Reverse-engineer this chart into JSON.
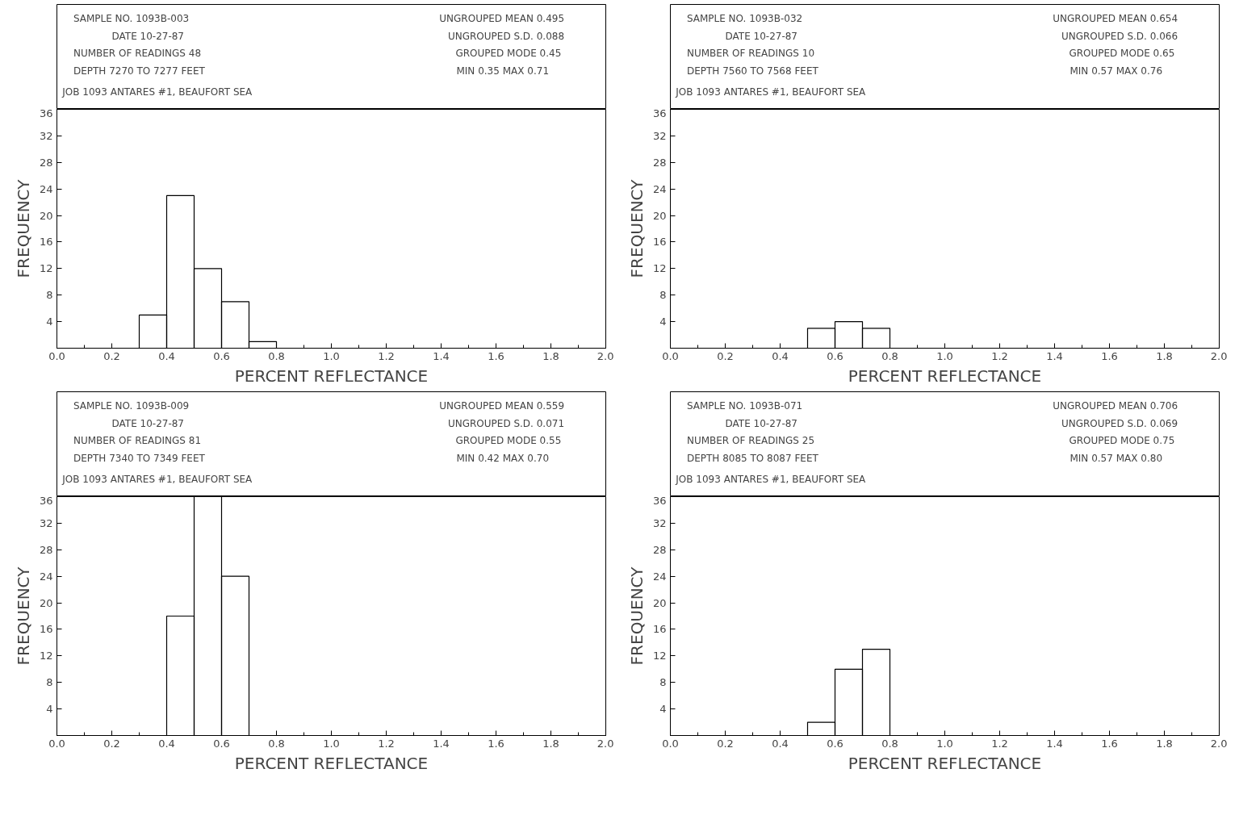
{
  "chart_data": [
    {
      "type": "histogram",
      "title": "SAMPLE NO. 1093B-003",
      "annotations": [
        "DATE 10-27-87",
        "NUMBER OF READINGS 48",
        "DEPTH 7270  TO 7277  FEET",
        "UNGROUPED MEAN  0.495",
        "UNGROUPED S.D.  0.088",
        "GROUPED MODE   0.45",
        "MIN  0.35     MAX  0.71",
        "JOB 1093 ANTARES #1, BEAUFORT SEA"
      ],
      "xlabel": "PERCENT REFLECTANCE",
      "ylabel": "FREQUENCY",
      "bins": [
        0.3,
        0.4,
        0.5,
        0.6,
        0.7,
        0.8
      ],
      "values": [
        5,
        23,
        12,
        7,
        1
      ],
      "color": "#000000",
      "xlim": [
        0,
        2
      ],
      "ylim": [
        0,
        36
      ],
      "xticks": [
        {
          "value": 0,
          "label": "0.0"
        },
        0.2,
        0.4,
        0.6,
        0.8,
        {
          "value": 1,
          "label": "1.0"
        },
        1.2,
        1.4,
        1.6,
        1.8,
        {
          "value": 2,
          "label": "2.0"
        }
      ],
      "yticks": [
        4,
        8,
        12,
        16,
        20,
        24,
        28,
        32,
        36
      ],
      "grid": false
    },
    {
      "type": "histogram",
      "title": "SAMPLE NO. 1093B-032",
      "annotations": [
        "DATE 10-27-87",
        "NUMBER OF READINGS 10",
        "DEPTH 7560  TO 7568  FEET",
        "UNGROUPED MEAN  0.654",
        "UNGROUPED S.D.  0.066",
        "GROUPED MODE   0.65",
        "MIN  0.57     MAX  0.76",
        "JOB 1093 ANTARES #1, BEAUFORT SEA"
      ],
      "xlabel": "PERCENT REFLECTANCE",
      "ylabel": "FREQUENCY",
      "bins": [
        0.5,
        0.6,
        0.7,
        0.8
      ],
      "values": [
        3,
        4,
        3
      ],
      "color": "#000000",
      "xlim": [
        0,
        2
      ],
      "ylim": [
        0,
        36
      ],
      "xticks": [
        {
          "value": 0,
          "label": "0.0"
        },
        0.2,
        0.4,
        0.6,
        0.8,
        {
          "value": 1,
          "label": "1.0"
        },
        1.2,
        1.4,
        1.6,
        1.8,
        {
          "value": 2,
          "label": "2.0"
        }
      ],
      "yticks": [
        4,
        8,
        12,
        16,
        20,
        24,
        28,
        32,
        36
      ],
      "grid": false
    },
    {
      "type": "histogram",
      "title": "SAMPLE NO. 1093B-009",
      "annotations": [
        "DATE 10-27-87",
        "NUMBER OF READINGS 81",
        "DEPTH 7340  TO 7349  FEET",
        "UNGROUPED MEAN  0.559",
        "UNGROUPED S.D.  0.071",
        "GROUPED MODE   0.55",
        "MIN  0.42     MAX  0.70",
        "JOB 1093 ANTARES #1, BEAUFORT SEA"
      ],
      "xlabel": "PERCENT REFLECTANCE",
      "ylabel": "FREQUENCY",
      "bins": [
        0.4,
        0.5,
        0.6,
        0.7
      ],
      "values": [
        18,
        36,
        24
      ],
      "color": "#000000",
      "xlim": [
        0,
        2
      ],
      "ylim": [
        0,
        36
      ],
      "xticks": [
        {
          "value": 0,
          "label": "0.0"
        },
        0.2,
        0.4,
        0.6,
        0.8,
        {
          "value": 1,
          "label": "1.0"
        },
        1.2,
        1.4,
        1.6,
        1.8,
        {
          "value": 2,
          "label": "2.0"
        }
      ],
      "yticks": [
        4,
        8,
        12,
        16,
        20,
        24,
        28,
        32,
        36
      ],
      "grid": false
    },
    {
      "type": "histogram",
      "title": "SAMPLE NO. 1093B-071",
      "annotations": [
        "DATE 10-27-87",
        "NUMBER OF READINGS 25",
        "DEPTH 8085  TO 8087  FEET",
        "UNGROUPED MEAN  0.706",
        "UNGROUPED S.D.  0.069",
        "GROUPED MODE   0.75",
        "MIN  0.57     MAX  0.80",
        "JOB 1093 ANTARES #1, BEAUFORT SEA"
      ],
      "xlabel": "PERCENT REFLECTANCE",
      "ylabel": "FREQUENCY",
      "bins": [
        0.5,
        0.6,
        0.7,
        0.8
      ],
      "values": [
        2,
        10,
        13
      ],
      "color": "#000000",
      "xlim": [
        0,
        2
      ],
      "ylim": [
        0,
        36
      ],
      "xticks": [
        {
          "value": 0,
          "label": "0.0"
        },
        0.2,
        0.4,
        0.6,
        0.8,
        {
          "value": 1,
          "label": "1.0"
        },
        1.2,
        1.4,
        1.6,
        1.8,
        {
          "value": 2,
          "label": "2.0"
        }
      ],
      "yticks": [
        4,
        8,
        12,
        16,
        20,
        24,
        28,
        32,
        36
      ],
      "grid": false
    }
  ]
}
